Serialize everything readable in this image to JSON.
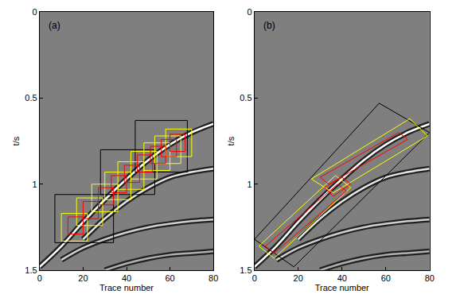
{
  "chart_data": [
    {
      "type": "line",
      "annotations": [
        "(a)"
      ],
      "x_label": "Trace number",
      "y_label": "t/s",
      "xlim": [
        0,
        80
      ],
      "xticks": [
        0,
        20,
        40,
        60,
        80
      ],
      "ylim": [
        1.5,
        0
      ],
      "yticks": [
        0,
        0.5,
        1,
        1.5
      ],
      "grid": false,
      "series": [
        {
          "type": "line",
          "color": "#b0b0b0",
          "x": [
            30,
            40,
            50,
            60,
            70,
            80
          ],
          "y": [
            1.5,
            1.46,
            1.43,
            1.41,
            1.4,
            1.39
          ]
        },
        {
          "type": "line",
          "color": "#d0d0d0",
          "x": [
            10,
            20,
            30,
            40,
            50,
            60,
            70,
            80
          ],
          "y": [
            1.44,
            1.37,
            1.32,
            1.28,
            1.25,
            1.23,
            1.215,
            1.205
          ]
        },
        {
          "type": "line",
          "color": "#e6e6e6",
          "x": [
            20,
            30,
            40,
            50,
            60,
            70,
            80
          ],
          "y": [
            1.32,
            1.2,
            1.1,
            1.02,
            0.96,
            0.93,
            0.91
          ]
        },
        {
          "type": "line",
          "color": "#ffffff",
          "x": [
            0,
            10,
            20,
            30,
            40,
            50,
            60,
            70,
            80
          ],
          "y": [
            1.48,
            1.36,
            1.22,
            1.09,
            0.97,
            0.86,
            0.77,
            0.7,
            0.65
          ]
        },
        {
          "type": "rect",
          "color": "#000000",
          "x0": [
            7,
            28,
            44
          ],
          "x1": [
            34,
            53,
            68
          ],
          "y0": [
            1.06,
            0.8,
            0.63
          ],
          "y1": [
            1.34,
            1.06,
            0.93
          ]
        },
        {
          "type": "rect",
          "color": "#ffff00",
          "x0": [
            10,
            17,
            24,
            30,
            36,
            42,
            48,
            53,
            58
          ],
          "x1": [
            22,
            29,
            36,
            42,
            48,
            54,
            60,
            65,
            70
          ],
          "y0": [
            1.17,
            1.08,
            1.0,
            0.93,
            0.87,
            0.81,
            0.76,
            0.72,
            0.68
          ],
          "y1": [
            1.33,
            1.24,
            1.16,
            1.09,
            1.03,
            0.97,
            0.92,
            0.88,
            0.84
          ]
        },
        {
          "type": "rect",
          "color": "#ff0000",
          "x0": [
            13,
            20,
            27,
            33,
            39,
            45,
            51,
            56,
            60
          ],
          "x1": [
            20,
            27,
            34,
            40,
            46,
            52,
            58,
            63,
            67
          ],
          "y0": [
            1.19,
            1.1,
            1.02,
            0.95,
            0.89,
            0.83,
            0.78,
            0.74,
            0.71
          ],
          "y1": [
            1.29,
            1.2,
            1.12,
            1.05,
            0.99,
            0.93,
            0.88,
            0.84,
            0.81
          ]
        }
      ]
    },
    {
      "type": "line",
      "annotations": [
        "(b)"
      ],
      "x_label": "Trace number",
      "y_label": "t/s",
      "xlim": [
        0,
        80
      ],
      "xticks": [
        0,
        20,
        40,
        60,
        80
      ],
      "ylim": [
        1.5,
        0
      ],
      "yticks": [
        0,
        0.5,
        1,
        1.5
      ],
      "grid": false,
      "series": [
        {
          "type": "line",
          "color": "#b0b0b0",
          "x": [
            30,
            40,
            50,
            60,
            70,
            80
          ],
          "y": [
            1.5,
            1.46,
            1.43,
            1.41,
            1.4,
            1.39
          ]
        },
        {
          "type": "line",
          "color": "#d0d0d0",
          "x": [
            10,
            20,
            30,
            40,
            50,
            60,
            70,
            80
          ],
          "y": [
            1.44,
            1.37,
            1.32,
            1.28,
            1.25,
            1.23,
            1.215,
            1.205
          ]
        },
        {
          "type": "line",
          "color": "#e6e6e6",
          "x": [
            20,
            30,
            40,
            50,
            60,
            70,
            80
          ],
          "y": [
            1.32,
            1.2,
            1.1,
            1.02,
            0.96,
            0.93,
            0.91
          ]
        },
        {
          "type": "line",
          "color": "#ffffff",
          "x": [
            0,
            10,
            20,
            30,
            40,
            50,
            60,
            70,
            80
          ],
          "y": [
            1.48,
            1.36,
            1.22,
            1.09,
            0.97,
            0.86,
            0.77,
            0.7,
            0.65
          ]
        },
        {
          "type": "polygon",
          "color": "#000000",
          "x": [
            0,
            18,
            80,
            57,
            0
          ],
          "y": [
            1.32,
            1.48,
            0.7,
            0.53,
            1.32
          ]
        },
        {
          "type": "polygon",
          "color": "#ffff00",
          "x": [
            2,
            9,
            44,
            37,
            2,
            null,
            26,
            36,
            79,
            71,
            26
          ],
          "y": [
            1.36,
            1.43,
            1.02,
            0.95,
            1.36,
            null,
            0.97,
            1.05,
            0.72,
            0.62,
            0.97
          ]
        },
        {
          "type": "polygon",
          "color": "#ff0000",
          "x": [
            5,
            9,
            42,
            38,
            5,
            null,
            32,
            36,
            44,
            40,
            32,
            null,
            30,
            34,
            70,
            66,
            30
          ],
          "y": [
            1.36,
            1.4,
            1.04,
            1.0,
            1.36,
            null,
            1.02,
            1.07,
            1.0,
            0.96,
            1.02,
            null,
            0.96,
            1.0,
            0.74,
            0.7,
            0.96
          ]
        }
      ]
    }
  ]
}
